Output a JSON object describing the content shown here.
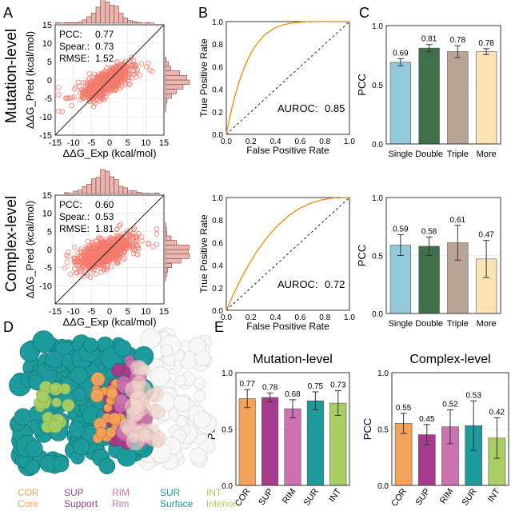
{
  "panel_letters": [
    "A",
    "B",
    "C",
    "D",
    "E"
  ],
  "row_labels": [
    "Mutation-level",
    "Complex-level"
  ],
  "colors": {
    "scatter": "#f47a6f",
    "roc": "#f0961e",
    "single": "#94c9dc",
    "double": "#3f6f4b",
    "triple": "#b9a496",
    "more": "#fbe3b4",
    "COR": "#f6a35a",
    "SUP": "#a93b8e",
    "RIM": "#cc72b0",
    "SUR": "#1d9a9b",
    "INT": "#a9cf64"
  },
  "chart_data": [
    {
      "id": "A1",
      "type": "scatter",
      "xlabel": "ΔΔG_Exp (kcal/mol)",
      "ylabel": "ΔΔG_Pred (kcal/mol)",
      "xlim": [
        -15,
        15
      ],
      "ylim": [
        -15,
        15
      ],
      "xticks": [
        -15,
        -10,
        -5,
        0,
        5,
        10,
        15
      ],
      "yticks": [
        -15,
        -10,
        -5,
        0,
        5,
        10,
        15
      ],
      "stats": [
        [
          "PCC:",
          "0.77"
        ],
        [
          "Spear.:",
          "0.73"
        ],
        [
          "RMSE:",
          "1.52"
        ]
      ],
      "pcc": 0.77,
      "spread_x": 3.0,
      "spread_y": 2.2,
      "center": [
        -1.0,
        -0.6
      ]
    },
    {
      "id": "A2",
      "type": "scatter",
      "xlabel": "ΔΔG_Exp (kcal/mol)",
      "ylabel": "ΔΔG_Pred (kcal/mol)",
      "xlim": [
        -15,
        15
      ],
      "ylim": [
        -15,
        15
      ],
      "xticks": [
        -15,
        -10,
        -5,
        0,
        5,
        10,
        15
      ],
      "yticks": [
        -10,
        -5,
        0,
        5,
        10,
        15
      ],
      "stats": [
        [
          "PCC:",
          "0.60"
        ],
        [
          "Spear.:",
          "0.53"
        ],
        [
          "RMSE:",
          "1.81"
        ]
      ],
      "pcc": 0.6,
      "spread_x": 3.2,
      "spread_y": 2.2,
      "center": [
        -1.2,
        -0.8
      ]
    },
    {
      "id": "B1",
      "type": "line",
      "title": "",
      "xlabel": "False Positive Rate",
      "ylabel": "True Positive Rate",
      "xlim": [
        0,
        1
      ],
      "ylim": [
        0,
        1
      ],
      "xticks": [
        "0.0",
        "0.2",
        "0.4",
        "0.6",
        "0.8",
        "1.0"
      ],
      "yticks": [
        "0.0",
        "0.2",
        "0.4",
        "0.6",
        "0.8",
        "1.0"
      ],
      "auroc_label": "AUROC:",
      "auroc": "0.85",
      "auc": 0.85
    },
    {
      "id": "B2",
      "type": "line",
      "title": "",
      "xlabel": "False Positive Rate",
      "ylabel": "True Positive Rate",
      "xlim": [
        0,
        1
      ],
      "ylim": [
        0,
        1
      ],
      "xticks": [
        "0.0",
        "0.2",
        "0.4",
        "0.6",
        "0.8",
        "1.0"
      ],
      "yticks": [
        "0.0",
        "0.2",
        "0.4",
        "0.6",
        "0.8",
        "1.0"
      ],
      "auroc_label": "AUROC:",
      "auroc": "0.72",
      "auc": 0.72
    },
    {
      "id": "C1",
      "type": "bar",
      "ylabel": "PCC",
      "ylim": [
        0,
        1
      ],
      "yticks": [
        "0.0",
        "0.5",
        "1.0"
      ],
      "categories": [
        "Single",
        "Double",
        "Triple",
        "More"
      ],
      "values": [
        0.69,
        0.81,
        0.78,
        0.78
      ],
      "errors": [
        0.03,
        0.03,
        0.05,
        0.025
      ],
      "labels": [
        "0.69",
        "0.81",
        "0.78",
        "0.78"
      ],
      "color_keys": [
        "single",
        "double",
        "triple",
        "more"
      ]
    },
    {
      "id": "C2",
      "type": "bar",
      "ylabel": "PCC",
      "ylim": [
        0,
        1
      ],
      "yticks": [
        "0.0",
        "0.5",
        "1.0"
      ],
      "categories": [
        "Single",
        "Double",
        "Triple",
        "More"
      ],
      "values": [
        0.59,
        0.58,
        0.61,
        0.47
      ],
      "errors": [
        0.09,
        0.08,
        0.15,
        0.16
      ],
      "labels": [
        "0.59",
        "0.58",
        "0.61",
        "0.47"
      ],
      "color_keys": [
        "single",
        "double",
        "triple",
        "more"
      ]
    },
    {
      "id": "E1",
      "type": "bar",
      "title": "Mutation-level",
      "ylabel": "PCC",
      "ylim": [
        0,
        1
      ],
      "yticks": [
        "0.0",
        "0.5",
        "1.0"
      ],
      "categories": [
        "COR",
        "SUP",
        "RIM",
        "SUR",
        "INT"
      ],
      "values": [
        0.77,
        0.78,
        0.68,
        0.75,
        0.73
      ],
      "errors": [
        0.08,
        0.04,
        0.08,
        0.08,
        0.11
      ],
      "labels": [
        "0.77",
        "0.78",
        "0.68",
        "0.75",
        "0.73"
      ],
      "color_keys": [
        "COR",
        "SUP",
        "RIM",
        "SUR",
        "INT"
      ]
    },
    {
      "id": "E2",
      "type": "bar",
      "title": "Complex-level",
      "ylabel": "PCC",
      "ylim": [
        0,
        1
      ],
      "yticks": [
        "0.0",
        "0.5",
        "1.0"
      ],
      "categories": [
        "COR",
        "SUP",
        "RIM",
        "SUR",
        "INT"
      ],
      "values": [
        0.55,
        0.45,
        0.52,
        0.53,
        0.42
      ],
      "errors": [
        0.09,
        0.09,
        0.15,
        0.22,
        0.18
      ],
      "labels": [
        "0.55",
        "0.45",
        "0.52",
        "0.53",
        "0.42"
      ],
      "color_keys": [
        "COR",
        "SUP",
        "RIM",
        "SUR",
        "INT"
      ]
    }
  ],
  "legend_D": [
    {
      "abbr": "COR",
      "name": "Core",
      "color_key": "COR"
    },
    {
      "abbr": "SUP",
      "name": "Support",
      "color_key": "SUP"
    },
    {
      "abbr": "RIM",
      "name": "Rim",
      "color_key": "RIM"
    },
    {
      "abbr": "SUR",
      "name": "Surface",
      "color_key": "SUR"
    },
    {
      "abbr": "INT",
      "name": "Interior",
      "color_key": "INT"
    }
  ]
}
